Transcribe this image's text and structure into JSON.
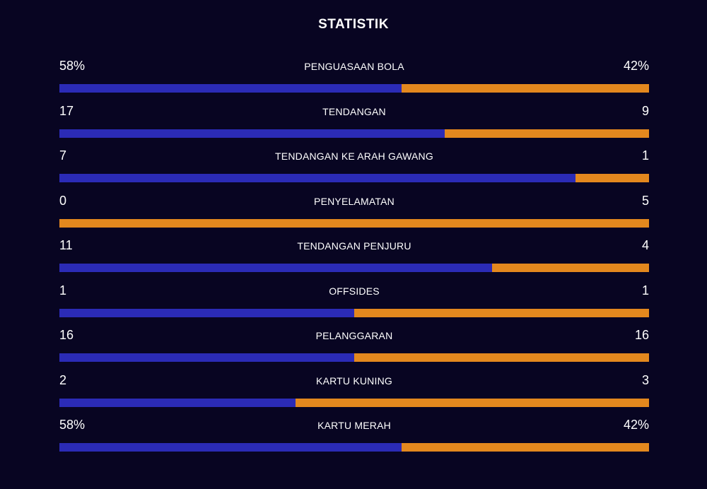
{
  "title": "STATISTIK",
  "colors": {
    "background": "#080522",
    "home": "#2b2bb6",
    "away": "#e3881e",
    "text": "#ffffff"
  },
  "chart_data": {
    "type": "bar",
    "title": "STATISTIK",
    "stacked": true,
    "orientation": "horizontal",
    "rows": [
      {
        "label": "PENGUASAAN BOLA",
        "left_text": "58%",
        "right_text": "42%",
        "left": 58,
        "right": 42
      },
      {
        "label": "TENDANGAN",
        "left_text": "17",
        "right_text": "9",
        "left": 17,
        "right": 9
      },
      {
        "label": "TENDANGAN KE ARAH GAWANG",
        "left_text": "7",
        "right_text": "1",
        "left": 7,
        "right": 1
      },
      {
        "label": "PENYELAMATAN",
        "left_text": "0",
        "right_text": "5",
        "left": 0,
        "right": 5
      },
      {
        "label": "TENDANGAN PENJURU",
        "left_text": "11",
        "right_text": "4",
        "left": 11,
        "right": 4
      },
      {
        "label": "OFFSIDES",
        "left_text": "1",
        "right_text": "1",
        "left": 1,
        "right": 1
      },
      {
        "label": "PELANGGARAN",
        "left_text": "16",
        "right_text": "16",
        "left": 16,
        "right": 16
      },
      {
        "label": "KARTU KUNING",
        "left_text": "2",
        "right_text": "3",
        "left": 2,
        "right": 3
      },
      {
        "label": "KARTU MERAH",
        "left_text": "58%",
        "right_text": "42%",
        "left": 58,
        "right": 42
      }
    ]
  }
}
